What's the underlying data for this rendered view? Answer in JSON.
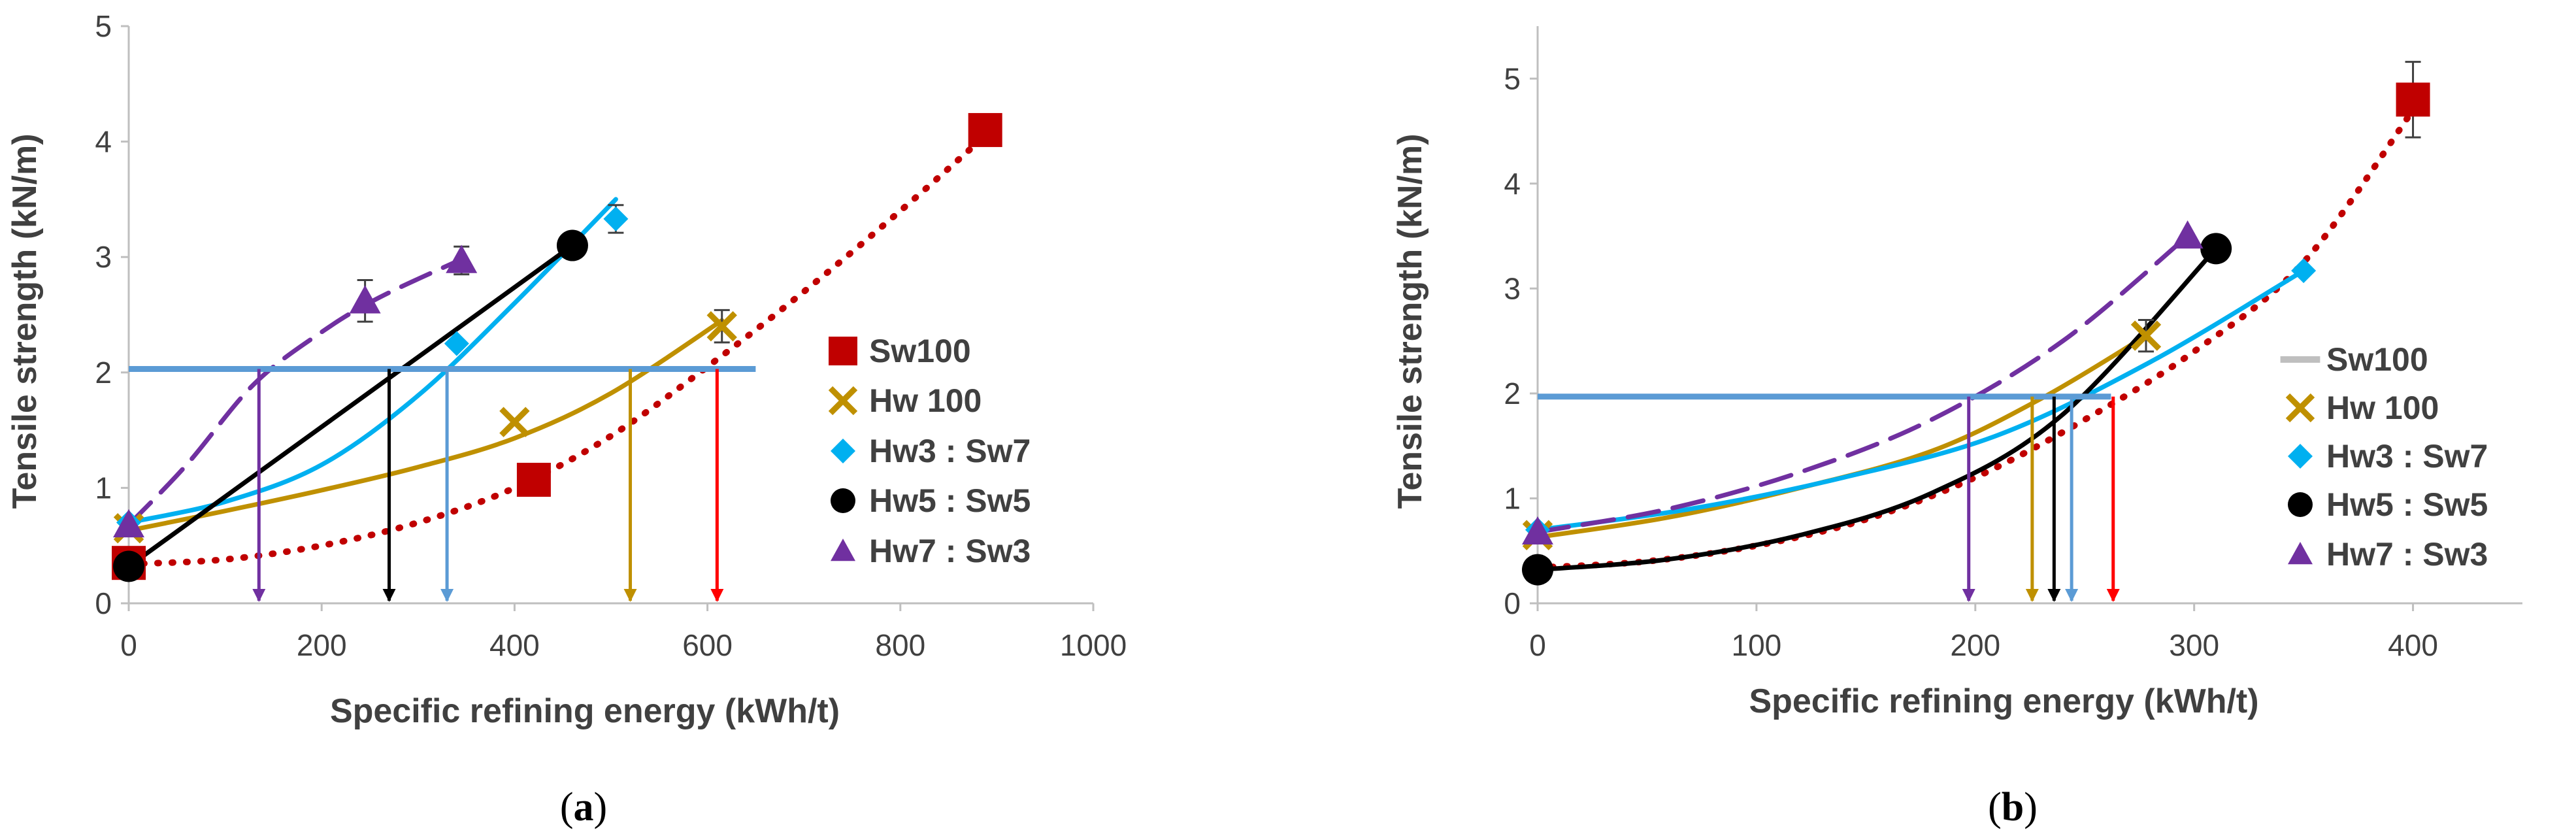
{
  "colors": {
    "Sw100": "#C00000",
    "Hw100": "#BF9000",
    "Hw3Sw7": "#00B0F0",
    "Hw5Sw5": "#000000",
    "Hw7Sw3": "#7030A0",
    "threshold": "#5B9BD5",
    "arrowRed": "#FF0000",
    "arrowBlue": "#5B9BD5",
    "axis": "#BFBFBF",
    "text": "#404040",
    "sw100LegendB": "#BFBFBF"
  },
  "chart_data": [
    {
      "panel": "a",
      "caption_open": "(",
      "caption_letter": "a",
      "caption_close": ")",
      "type": "scatter",
      "xlabel": "Specific refining energy (kWh/t)",
      "ylabel": "Tensile strength (kN/m)",
      "xlim": [
        0,
        1000
      ],
      "ylim": [
        0,
        5
      ],
      "xticks": [
        0,
        200,
        400,
        600,
        800,
        1000
      ],
      "yticks": [
        0,
        1,
        2,
        3,
        4,
        5
      ],
      "legend_position": "right",
      "series": [
        {
          "key": "Sw100",
          "name": "Sw100",
          "marker": "square",
          "color_key": "Sw100",
          "points": [
            [
              0,
              0.35
            ],
            [
              420,
              1.07
            ],
            [
              888,
              4.1
            ]
          ],
          "trend": {
            "style": "dotted",
            "points": [
              [
                0,
                0.34
              ],
              [
                100,
                0.38
              ],
              [
                200,
                0.5
              ],
              [
                300,
                0.7
              ],
              [
                400,
                1.0
              ],
              [
                500,
                1.45
              ],
              [
                600,
                2.05
              ],
              [
                700,
                2.7
              ],
              [
                800,
                3.4
              ],
              [
                888,
                4.05
              ]
            ]
          }
        },
        {
          "key": "Hw100",
          "name": "Hw 100",
          "marker": "x",
          "color_key": "Hw100",
          "points": [
            [
              0,
              0.65
            ],
            [
              400,
              1.57
            ],
            [
              615,
              2.4
            ]
          ],
          "trend": {
            "style": "solid",
            "points": [
              [
                0,
                0.63
              ],
              [
                100,
                0.8
              ],
              [
                200,
                0.98
              ],
              [
                300,
                1.18
              ],
              [
                400,
                1.43
              ],
              [
                500,
                1.82
              ],
              [
                615,
                2.45
              ]
            ]
          }
        },
        {
          "key": "Hw3Sw7",
          "name": "Hw3 : Sw7",
          "marker": "diamond",
          "color_key": "Hw3Sw7",
          "points": [
            [
              0,
              0.7
            ],
            [
              340,
              2.25
            ],
            [
              505,
              3.33
            ]
          ],
          "trend": {
            "style": "solid",
            "points": [
              [
                0,
                0.7
              ],
              [
                100,
                0.88
              ],
              [
                200,
                1.2
              ],
              [
                300,
                1.8
              ],
              [
                400,
                2.6
              ],
              [
                505,
                3.5
              ]
            ]
          }
        },
        {
          "key": "Hw5Sw5",
          "name": "Hw5 : Sw5",
          "marker": "circle",
          "color_key": "Hw5Sw5",
          "points": [
            [
              0,
              0.32
            ],
            [
              460,
              3.1
            ]
          ],
          "trend": {
            "style": "solid",
            "points": [
              [
                0,
                0.32
              ],
              [
                460,
                3.1
              ]
            ]
          }
        },
        {
          "key": "Hw7Sw3",
          "name": "Hw7 : Sw3",
          "marker": "triangle",
          "color_key": "Hw7Sw3",
          "points": [
            [
              0,
              0.68
            ],
            [
              245,
              2.62
            ],
            [
              345,
              2.97
            ]
          ],
          "trend": {
            "style": "dashed",
            "points": [
              [
                0,
                0.68
              ],
              [
                60,
                1.2
              ],
              [
                130,
                1.9
              ],
              [
                200,
                2.35
              ],
              [
                260,
                2.65
              ],
              [
                345,
                2.98
              ]
            ]
          }
        }
      ],
      "error_bars": [
        {
          "x": 245,
          "y": 2.62,
          "err": 0.18,
          "color_key": "Hw7Sw3"
        },
        {
          "x": 345,
          "y": 2.97,
          "err": 0.12,
          "color_key": "Hw7Sw3"
        },
        {
          "x": 615,
          "y": 2.4,
          "err": 0.14,
          "color_key": "Hw100"
        },
        {
          "x": 505,
          "y": 3.33,
          "err": 0.12,
          "color_key": "Hw3Sw7"
        },
        {
          "x": 888,
          "y": 4.1,
          "err": 0.12,
          "color_key": "Sw100"
        }
      ],
      "threshold": {
        "y": 2.03,
        "x_from": 0,
        "x_to": 650
      },
      "drop_arrows": [
        {
          "x": 135,
          "color_key": "Hw7Sw3"
        },
        {
          "x": 270,
          "color_key": "Hw5Sw5"
        },
        {
          "x": 330,
          "color_key": "arrowBlue"
        },
        {
          "x": 520,
          "color_key": "Hw100"
        },
        {
          "x": 610,
          "color_key": "arrowRed"
        }
      ]
    },
    {
      "panel": "b",
      "caption_open": "(",
      "caption_letter": "b",
      "caption_close": ")",
      "type": "scatter",
      "xlabel": "Specific refining energy (kWh/t)",
      "ylabel": "Tensile strength (kN/m)",
      "xlim": [
        0,
        450
      ],
      "ylim": [
        0,
        5.5
      ],
      "xticks": [
        0,
        100,
        200,
        300,
        400
      ],
      "yticks": [
        0,
        1,
        2,
        3,
        4,
        5
      ],
      "legend_position": "right",
      "series": [
        {
          "key": "Sw100",
          "name": "Sw100",
          "marker": "square",
          "color_key": "Sw100",
          "legend_marker": "line",
          "legend_color_key": "sw100LegendB",
          "points": [
            [
              400,
              4.8
            ]
          ],
          "trend": {
            "style": "dotted",
            "points": [
              [
                0,
                0.34
              ],
              [
                50,
                0.4
              ],
              [
                100,
                0.55
              ],
              [
                150,
                0.8
              ],
              [
                200,
                1.2
              ],
              [
                250,
                1.75
              ],
              [
                300,
                2.4
              ],
              [
                350,
                3.25
              ],
              [
                400,
                4.7
              ]
            ]
          }
        },
        {
          "key": "Hw100",
          "name": "Hw 100",
          "marker": "x",
          "color_key": "Hw100",
          "points": [
            [
              0,
              0.65
            ],
            [
              278,
              2.55
            ]
          ],
          "trend": {
            "style": "solid",
            "points": [
              [
                0,
                0.63
              ],
              [
                60,
                0.82
              ],
              [
                120,
                1.1
              ],
              [
                180,
                1.45
              ],
              [
                230,
                1.95
              ],
              [
                278,
                2.55
              ]
            ]
          }
        },
        {
          "key": "Hw3Sw7",
          "name": "Hw3 : Sw7",
          "marker": "diamond",
          "color_key": "Hw3Sw7",
          "points": [
            [
              0,
              0.7
            ],
            [
              350,
              3.17
            ]
          ],
          "trend": {
            "style": "solid",
            "points": [
              [
                0,
                0.7
              ],
              [
                70,
                0.9
              ],
              [
                140,
                1.2
              ],
              [
                210,
                1.6
              ],
              [
                280,
                2.3
              ],
              [
                350,
                3.17
              ]
            ]
          }
        },
        {
          "key": "Hw5Sw5",
          "name": "Hw5 : Sw5",
          "marker": "circle",
          "color_key": "Hw5Sw5",
          "points": [
            [
              0,
              0.32
            ],
            [
              310,
              3.38
            ]
          ],
          "trend": {
            "style": "solid",
            "points": [
              [
                0,
                0.32
              ],
              [
                60,
                0.42
              ],
              [
                120,
                0.65
              ],
              [
                180,
                1.05
              ],
              [
                240,
                1.8
              ],
              [
                310,
                3.38
              ]
            ]
          }
        },
        {
          "key": "Hw7Sw3",
          "name": "Hw7 : Sw3",
          "marker": "triangle",
          "color_key": "Hw7Sw3",
          "points": [
            [
              0,
              0.68
            ],
            [
              297,
              3.5
            ]
          ],
          "trend": {
            "style": "dashed",
            "points": [
              [
                0,
                0.68
              ],
              [
                60,
                0.9
              ],
              [
                120,
                1.25
              ],
              [
                180,
                1.75
              ],
              [
                240,
                2.5
              ],
              [
                297,
                3.5
              ]
            ]
          }
        }
      ],
      "error_bars": [
        {
          "x": 400,
          "y": 4.8,
          "err": 0.36,
          "color_key": "Sw100"
        },
        {
          "x": 278,
          "y": 2.55,
          "err": 0.15,
          "color_key": "Hw100"
        }
      ],
      "threshold": {
        "y": 1.97,
        "x_from": 0,
        "x_to": 262
      },
      "drop_arrows": [
        {
          "x": 197,
          "color_key": "Hw7Sw3"
        },
        {
          "x": 226,
          "color_key": "Hw100"
        },
        {
          "x": 236,
          "color_key": "Hw5Sw5"
        },
        {
          "x": 244,
          "color_key": "arrowBlue"
        },
        {
          "x": 263,
          "color_key": "arrowRed"
        }
      ]
    }
  ]
}
